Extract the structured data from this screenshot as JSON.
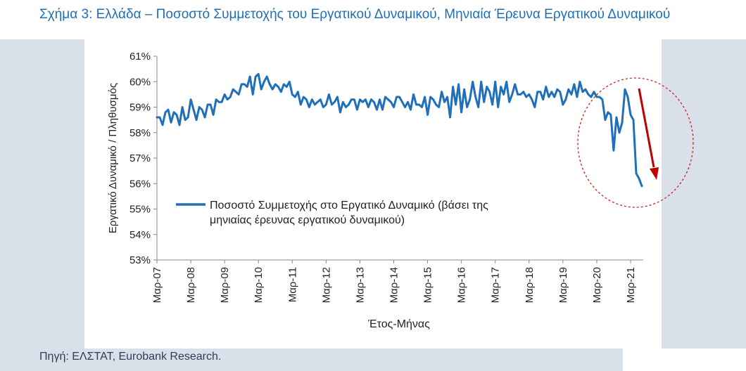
{
  "title": "Σχήμα 3: Ελλάδα – Ποσοστό Συμμετοχής του Εργατικού Δυναμικού, Μηνιαία Έρευνα Εργατικού Δυναμικού",
  "source": "Πηγή: ΕΛΣΤΑΤ, Eurobank Research.",
  "colors": {
    "line": "#1f6fba",
    "arrow": "#c00000",
    "ellipse": "#d01010",
    "title": "#1e6fb8",
    "panel": "#d9e0ea"
  },
  "chart_data": {
    "type": "line",
    "title": "",
    "xlabel": "Έτος-Μήνας",
    "ylabel": "Εργατικό Δυναμικό / Πληθυσμός",
    "ylim": [
      53,
      61
    ],
    "yticks": [
      "53%",
      "54%",
      "55%",
      "56%",
      "57%",
      "58%",
      "59%",
      "60%",
      "61%"
    ],
    "xticks": [
      "Μαρ-07",
      "Μαρ-08",
      "Μαρ-09",
      "Μαρ-10",
      "Μαρ-11",
      "Μαρ-12",
      "Μαρ-13",
      "Μαρ-14",
      "Μαρ-15",
      "Μαρ-16",
      "Μαρ-17",
      "Μαρ-18",
      "Μαρ-19",
      "Μαρ-20",
      "Μαρ-21"
    ],
    "legend": {
      "position": "middle-left"
    },
    "grid": false,
    "annotations": [
      "ellipse highlighting 2020-2021 decline",
      "red downward arrow"
    ],
    "series": [
      {
        "name": "Ποσοστό Συμμετοχής στο Εργατικό Δυναμικό (βάσει της μηνιαίας έρευνας εργατικού δυναμικού)",
        "start": "2007-03",
        "values": [
          58.6,
          58.6,
          58.3,
          58.8,
          58.9,
          58.4,
          58.8,
          58.7,
          58.3,
          59.0,
          58.5,
          58.6,
          59.3,
          58.9,
          58.5,
          59.0,
          58.9,
          58.6,
          59.1,
          59.1,
          58.7,
          59.3,
          59.2,
          59.2,
          59.5,
          59.3,
          59.4,
          59.7,
          59.6,
          59.5,
          59.9,
          59.9,
          59.8,
          60.2,
          59.5,
          60.2,
          60.3,
          59.7,
          60.0,
          60.2,
          59.9,
          59.7,
          59.9,
          59.8,
          59.6,
          59.9,
          59.8,
          60.0,
          59.5,
          59.4,
          59.6,
          59.1,
          59.4,
          59.3,
          59.0,
          59.3,
          59.1,
          59.2,
          59.3,
          59.0,
          59.1,
          59.5,
          59.1,
          59.2,
          59.4,
          58.8,
          59.2,
          59.0,
          59.1,
          59.3,
          59.3,
          58.9,
          59.3,
          59.2,
          59.3,
          59.0,
          59.3,
          59.2,
          58.9,
          59.3,
          58.9,
          59.4,
          59.3,
          59.2,
          59.0,
          59.4,
          59.4,
          59.2,
          59.0,
          59.2,
          58.9,
          59.5,
          59.1,
          59.1,
          59.0,
          59.4,
          58.7,
          59.4,
          59.3,
          59.1,
          59.0,
          59.6,
          59.2,
          59.4,
          58.6,
          59.8,
          59.1,
          59.9,
          58.8,
          59.7,
          59.0,
          59.3,
          60.0,
          59.4,
          59.0,
          60.0,
          59.2,
          59.8,
          59.6,
          59.1,
          60.0,
          59.0,
          59.8,
          59.5,
          60.0,
          59.2,
          59.5,
          59.9,
          59.5,
          59.5,
          59.6,
          59.4,
          59.5,
          59.3,
          59.0,
          59.6,
          59.6,
          59.3,
          59.8,
          59.4,
          59.6,
          59.4,
          59.7,
          59.6,
          59.1,
          59.3,
          59.7,
          59.5,
          59.9,
          59.4,
          60.0,
          59.6,
          59.7,
          59.5,
          59.4,
          59.6,
          59.4,
          59.4,
          59.3,
          58.5,
          58.8,
          58.7,
          57.3,
          58.6,
          58.0,
          58.4,
          59.7,
          59.4,
          58.7,
          58.5,
          56.4,
          56.2,
          55.9
        ]
      }
    ]
  }
}
